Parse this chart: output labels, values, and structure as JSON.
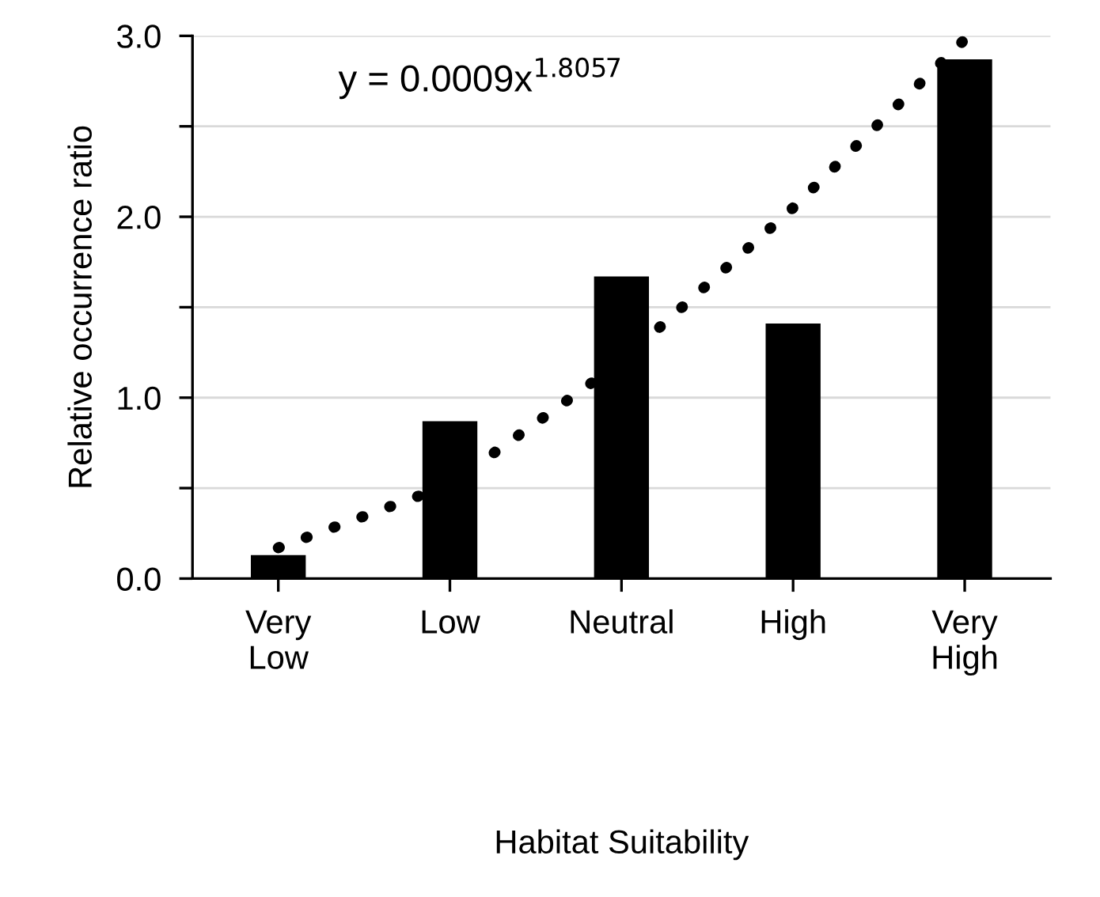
{
  "chart_data": {
    "type": "bar",
    "xlabel": "Habitat Suitability",
    "ylabel": "Relative occurrence ratio",
    "categories": [
      "Very\nLow",
      "Low",
      "Neutral",
      "High",
      "Very\nHigh"
    ],
    "series": [
      {
        "color": "#000000",
        "values": [
          0.13,
          0.87,
          1.67,
          1.41,
          2.87
        ]
      },
      {
        "type": "line",
        "color": "#000000",
        "line_style": "dotted",
        "values": [
          0.17,
          0.52,
          1.2,
          2.05,
          2.98
        ]
      }
    ],
    "ylim": [
      0,
      3.0
    ],
    "yticks": [
      {
        "value": 0,
        "label": "0.0"
      },
      {
        "value": 0.5,
        "label": null
      },
      {
        "value": 1.0,
        "label": "1.0"
      },
      {
        "value": 1.5,
        "label": null
      },
      {
        "value": 2.0,
        "label": "2.0"
      },
      {
        "value": 2.5,
        "label": null
      },
      {
        "value": 3.0,
        "label": "3.0"
      }
    ],
    "grid": "y",
    "annotations": [
      "y = 0.0009x$^{1.8057}$"
    ]
  }
}
